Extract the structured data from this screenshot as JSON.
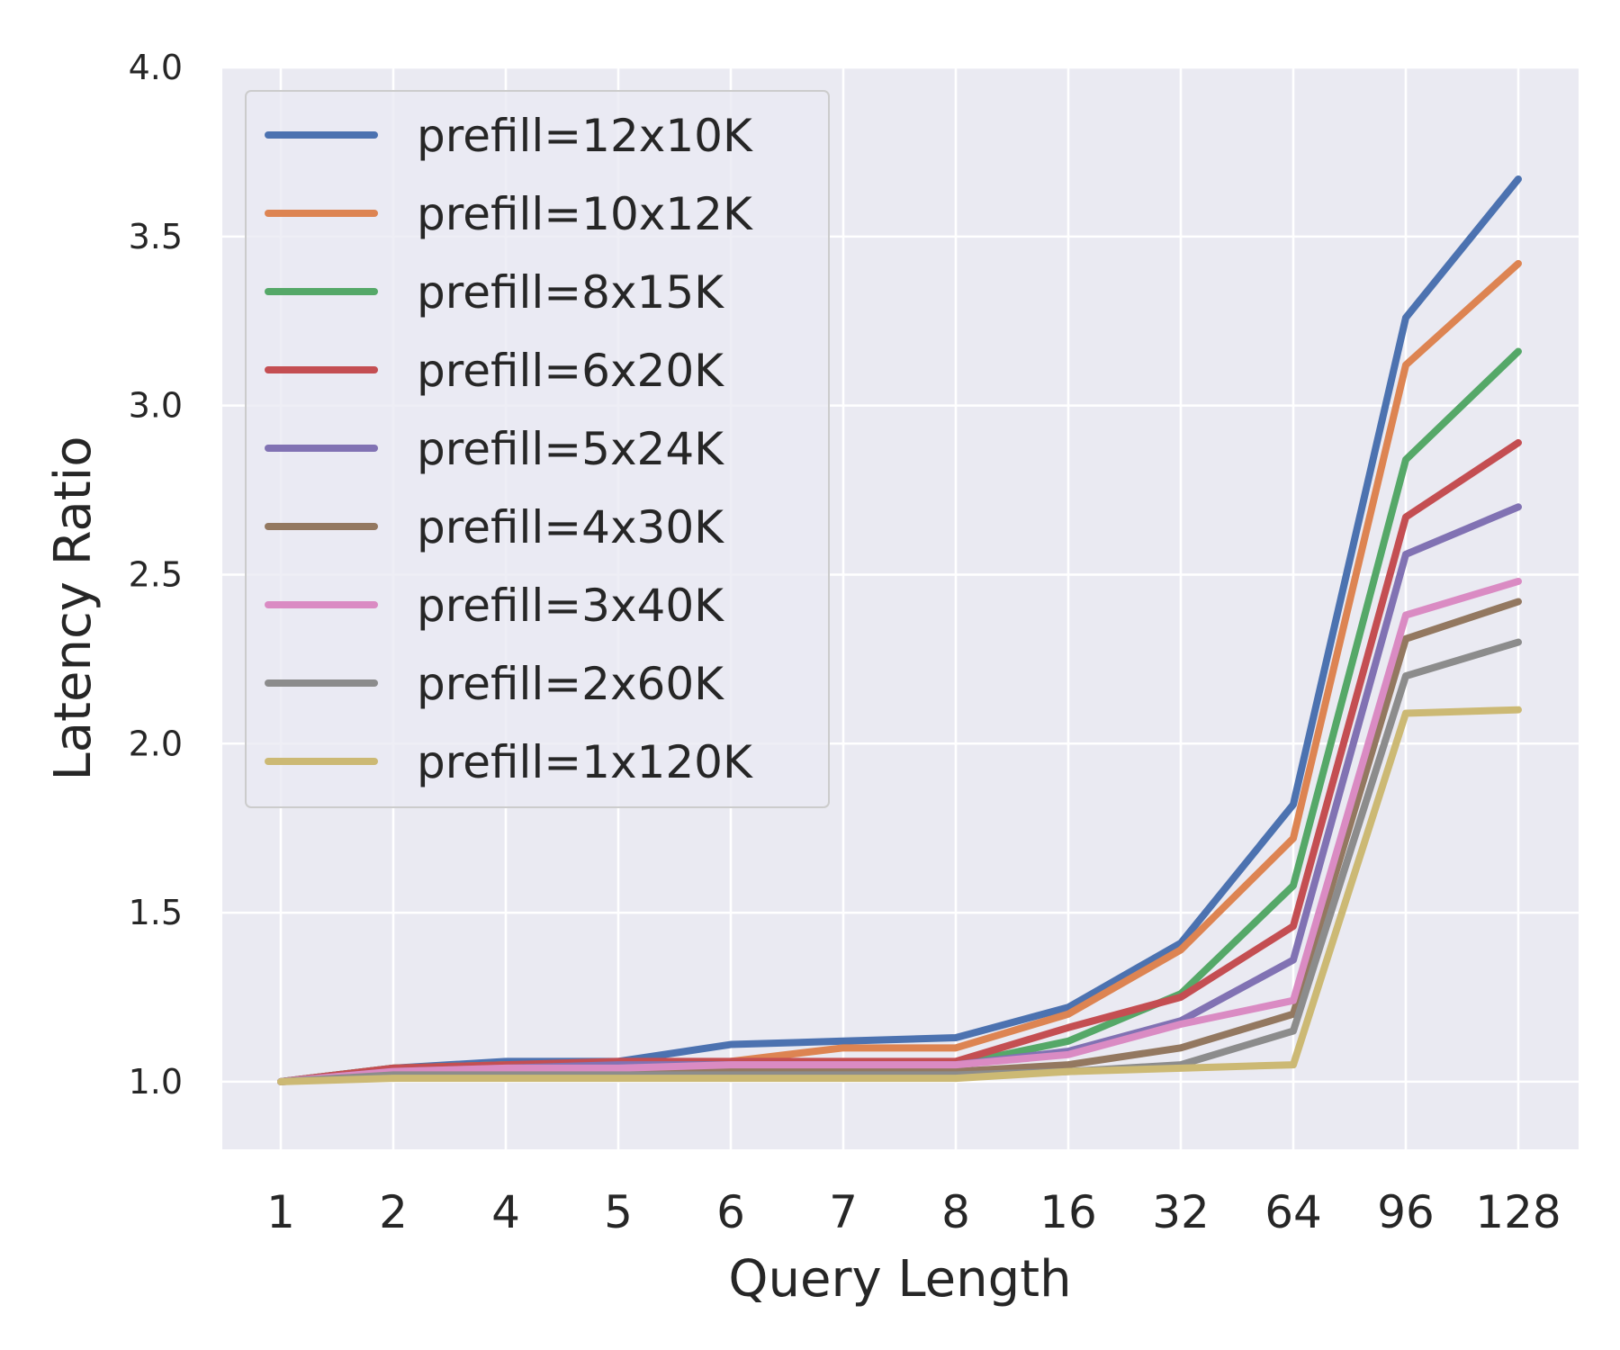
{
  "chart_data": {
    "type": "line",
    "title": "",
    "xlabel": "Query Length",
    "ylabel": "Latency Ratio",
    "categories": [
      "1",
      "2",
      "4",
      "5",
      "6",
      "7",
      "8",
      "16",
      "32",
      "64",
      "96",
      "128"
    ],
    "ylim": [
      0.8,
      4.0
    ],
    "yticks": [
      "1.0",
      "1.5",
      "2.0",
      "2.5",
      "3.0",
      "3.5",
      "4.0"
    ],
    "grid": true,
    "legend_position": "upper-left",
    "series": [
      {
        "name": "prefill=12x10K",
        "color": "#4c72b0",
        "values": [
          1.0,
          1.04,
          1.06,
          1.06,
          1.11,
          1.12,
          1.13,
          1.22,
          1.41,
          1.82,
          3.26,
          3.67
        ]
      },
      {
        "name": "prefill=10x12K",
        "color": "#dd8452",
        "values": [
          1.0,
          1.04,
          1.05,
          1.05,
          1.06,
          1.1,
          1.1,
          1.2,
          1.39,
          1.72,
          3.12,
          3.42
        ]
      },
      {
        "name": "prefill=8x15K",
        "color": "#55a868",
        "values": [
          1.0,
          1.04,
          1.05,
          1.05,
          1.05,
          1.05,
          1.05,
          1.12,
          1.26,
          1.58,
          2.84,
          3.16
        ]
      },
      {
        "name": "prefill=6x20K",
        "color": "#c44e52",
        "values": [
          1.0,
          1.04,
          1.05,
          1.06,
          1.06,
          1.06,
          1.06,
          1.16,
          1.25,
          1.46,
          2.67,
          2.89
        ]
      },
      {
        "name": "prefill=5x24K",
        "color": "#8172b3",
        "values": [
          1.0,
          1.03,
          1.04,
          1.05,
          1.05,
          1.05,
          1.05,
          1.09,
          1.18,
          1.36,
          2.56,
          2.7
        ]
      },
      {
        "name": "prefill=4x30K",
        "color": "#937860",
        "values": [
          1.0,
          1.02,
          1.02,
          1.03,
          1.03,
          1.03,
          1.03,
          1.05,
          1.1,
          1.2,
          2.31,
          2.42
        ]
      },
      {
        "name": "prefill=3x40K",
        "color": "#da8bc3",
        "values": [
          1.0,
          1.03,
          1.04,
          1.04,
          1.05,
          1.05,
          1.05,
          1.08,
          1.17,
          1.24,
          2.38,
          2.48
        ]
      },
      {
        "name": "prefill=2x60K",
        "color": "#8c8c8c",
        "values": [
          1.0,
          1.02,
          1.02,
          1.02,
          1.02,
          1.02,
          1.02,
          1.03,
          1.05,
          1.15,
          2.2,
          2.3
        ]
      },
      {
        "name": "prefill=1x120K",
        "color": "#ccb974",
        "values": [
          1.0,
          1.01,
          1.01,
          1.01,
          1.01,
          1.01,
          1.01,
          1.03,
          1.04,
          1.05,
          2.09,
          2.1
        ]
      }
    ]
  }
}
